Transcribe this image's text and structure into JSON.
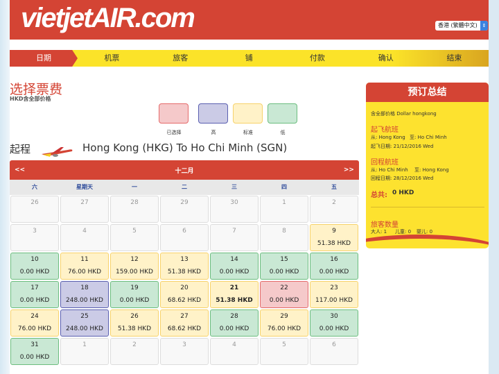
{
  "header": {
    "logo": "vietjetAIR.com",
    "language": "香港 (繁體中文)"
  },
  "nav": {
    "steps": [
      "日期",
      "机票",
      "旅客",
      "铺",
      "付款",
      "确认",
      "结束"
    ],
    "active": 0
  },
  "page": {
    "title": "选择票费",
    "subtitle": "HKD含全部价格"
  },
  "legend": [
    {
      "label": "已选择",
      "fill": "#f5c9ca",
      "border": "#e56a6a"
    },
    {
      "label": "高",
      "fill": "#cbcbe6",
      "border": "#5a5fb0"
    },
    {
      "label": "标准",
      "fill": "#fff2c8",
      "border": "#f7d26a"
    },
    {
      "label": "低",
      "fill": "#c9e8d4",
      "border": "#6bbd7e"
    }
  ],
  "flight": {
    "direction": "起程",
    "route": "Hong Kong (HKG) To Ho Chi Minh (SGN)"
  },
  "calendar": {
    "prev": "<<",
    "month": "十二月",
    "next": ">>",
    "weekdays": [
      "六",
      "星期天",
      "一",
      "二",
      "三",
      "四",
      "五"
    ],
    "cells": [
      {
        "d": "26",
        "s": "off"
      },
      {
        "d": "27",
        "s": "off"
      },
      {
        "d": "28",
        "s": "off"
      },
      {
        "d": "29",
        "s": "off"
      },
      {
        "d": "30",
        "s": "off"
      },
      {
        "d": "1",
        "s": "off"
      },
      {
        "d": "2",
        "s": "off"
      },
      {
        "d": "3",
        "s": "off"
      },
      {
        "d": "4",
        "s": "off"
      },
      {
        "d": "5",
        "s": "off"
      },
      {
        "d": "6",
        "s": "off"
      },
      {
        "d": "7",
        "s": "off"
      },
      {
        "d": "8",
        "s": "off"
      },
      {
        "d": "9",
        "p": "51.38 HKD",
        "s": "std"
      },
      {
        "d": "10",
        "p": "0.00 HKD",
        "s": "low"
      },
      {
        "d": "11",
        "p": "76.00 HKD",
        "s": "std"
      },
      {
        "d": "12",
        "p": "159.00 HKD",
        "s": "std"
      },
      {
        "d": "13",
        "p": "51.38 HKD",
        "s": "std"
      },
      {
        "d": "14",
        "p": "0.00 HKD",
        "s": "low"
      },
      {
        "d": "15",
        "p": "0.00 HKD",
        "s": "low"
      },
      {
        "d": "16",
        "p": "0.00 HKD",
        "s": "low"
      },
      {
        "d": "17",
        "p": "0.00 HKD",
        "s": "low"
      },
      {
        "d": "18",
        "p": "248.00 HKD",
        "s": "high"
      },
      {
        "d": "19",
        "p": "0.00 HKD",
        "s": "low"
      },
      {
        "d": "20",
        "p": "68.62 HKD",
        "s": "std"
      },
      {
        "d": "21",
        "p": "51.38 HKD",
        "s": "std bold"
      },
      {
        "d": "22",
        "p": "0.00 HKD",
        "s": "sel"
      },
      {
        "d": "23",
        "p": "117.00 HKD",
        "s": "std"
      },
      {
        "d": "24",
        "p": "76.00 HKD",
        "s": "std"
      },
      {
        "d": "25",
        "p": "248.00 HKD",
        "s": "high"
      },
      {
        "d": "26",
        "p": "51.38 HKD",
        "s": "std"
      },
      {
        "d": "27",
        "p": "68.62 HKD",
        "s": "std"
      },
      {
        "d": "28",
        "p": "0.00 HKD",
        "s": "low"
      },
      {
        "d": "29",
        "p": "76.00 HKD",
        "s": "std"
      },
      {
        "d": "30",
        "p": "0.00 HKD",
        "s": "low"
      },
      {
        "d": "31",
        "p": "0.00 HKD",
        "s": "low"
      },
      {
        "d": "1",
        "s": "off"
      },
      {
        "d": "2",
        "s": "off"
      },
      {
        "d": "3",
        "s": "off"
      },
      {
        "d": "4",
        "s": "off"
      },
      {
        "d": "5",
        "s": "off"
      },
      {
        "d": "6",
        "s": "off"
      }
    ]
  },
  "summary": {
    "title": "预订总结",
    "price_note": "含全部价格 Dollar hongkong",
    "outbound": {
      "heading": "起飞航班",
      "from": "从: Hong Kong",
      "to": "至: Ho Chi Minh",
      "date": "起飞日期: 21/12/2016 Wed"
    },
    "return": {
      "heading": "回程航班",
      "from": "从: Ho Chi Minh",
      "to": "至: Hong Kong",
      "date": "回程日期: 28/12/2016 Wed"
    },
    "total_label": "总共:",
    "total_value": "0 HKD",
    "passengers": {
      "heading": "旅客数量",
      "adults": "大人: 1",
      "children": "儿童: 0",
      "infants": "婴儿: 0"
    }
  },
  "colors": {
    "brand_red": "#d44434",
    "brand_yellow": "#fde22f"
  }
}
